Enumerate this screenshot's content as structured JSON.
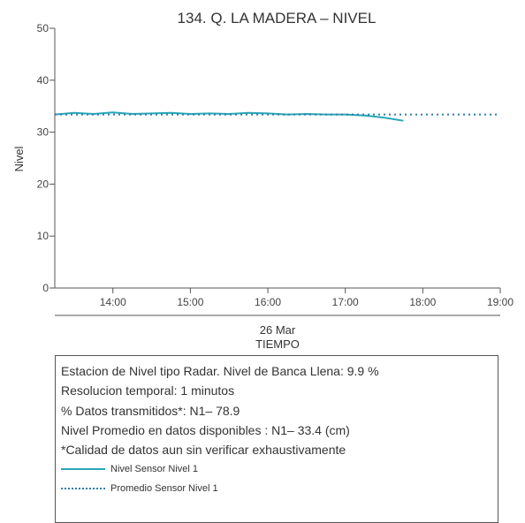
{
  "chart_data": {
    "type": "line",
    "title": "134. Q. LA MADERA – NIVEL",
    "ylabel": "Nivel",
    "xlabel_date": "26 Mar",
    "xlabel": "TIEMPO",
    "xlim": [
      "13:15",
      "19:00"
    ],
    "ylim": [
      0,
      50
    ],
    "yticks": [
      "0",
      "10",
      "20",
      "30",
      "40",
      "50"
    ],
    "xticks": [
      "14:00",
      "15:00",
      "16:00",
      "17:00",
      "18:00",
      "19:00"
    ],
    "grid": false,
    "colors": {
      "sensor": "#29a6b8",
      "average": "#2a7fa8"
    },
    "series": [
      {
        "name": "Nivel Sensor Nivel 1",
        "style": "solid",
        "x": [
          "13:15",
          "13:30",
          "13:45",
          "14:00",
          "14:15",
          "14:30",
          "14:45",
          "15:00",
          "15:15",
          "15:30",
          "15:45",
          "16:00",
          "16:15",
          "16:30",
          "16:45",
          "17:00",
          "17:15",
          "17:30",
          "17:45"
        ],
        "y": [
          33.4,
          33.7,
          33.5,
          33.8,
          33.5,
          33.6,
          33.7,
          33.5,
          33.6,
          33.5,
          33.7,
          33.6,
          33.4,
          33.5,
          33.4,
          33.4,
          33.2,
          32.8,
          32.2
        ]
      },
      {
        "name": "Promedio Sensor Nivel 1",
        "style": "dotted",
        "x": [
          "13:15",
          "19:00"
        ],
        "y": [
          33.4,
          33.4
        ]
      }
    ]
  },
  "info": {
    "line1": "Estacion de Nivel tipo Radar. Nivel de Banca Llena:  9.9 %",
    "line2": "Resolucion temporal: 1 minutos",
    "line3": "% Datos transmitidos*: N1– 78.9",
    "line4": "Nivel Promedio en datos disponibles : N1– 33.4 (cm)",
    "line5": "*Calidad de datos aun sin verificar exhaustivamente"
  },
  "legend": {
    "sensor": "Nivel Sensor Nivel 1",
    "average": "Promedio Sensor Nivel 1"
  }
}
